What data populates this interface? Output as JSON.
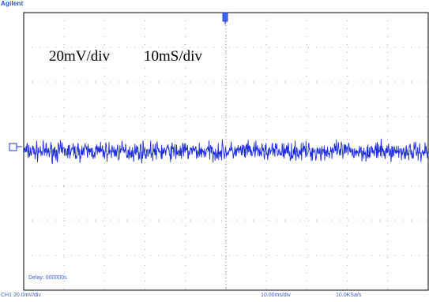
{
  "brand": "Agilent",
  "annotations": {
    "vertical_scale": "20mV/div",
    "time_scale": "10mS/div"
  },
  "status": {
    "delay": "Delay: 000000s",
    "channel": "CH1 20.0mV/div",
    "timebase": "10.00ms/div",
    "sample_rate": "10.0KSa/s"
  },
  "colors": {
    "trace": "#1f2fe0",
    "grid": "#9aa0b0",
    "brand": "#1d4fd8",
    "status_text": "#3b5bd9"
  },
  "chart_data": {
    "type": "line",
    "title": "",
    "xlabel": "",
    "ylabel": "",
    "grid": true,
    "divisions": {
      "x": 10,
      "y": 8
    },
    "xlim": [
      0,
      100
    ],
    "ylim": [
      -80,
      80
    ],
    "x_unit": "ms",
    "y_unit": "mV",
    "series": [
      {
        "description": "noise around 0 mV, approx ±4 mV peak-to-peak",
        "offset": 0,
        "amplitude_pp": 8,
        "x_start": 0,
        "x_end": 100
      }
    ],
    "markers": {
      "ground_reference_y": 0,
      "trigger_x": 50
    }
  }
}
